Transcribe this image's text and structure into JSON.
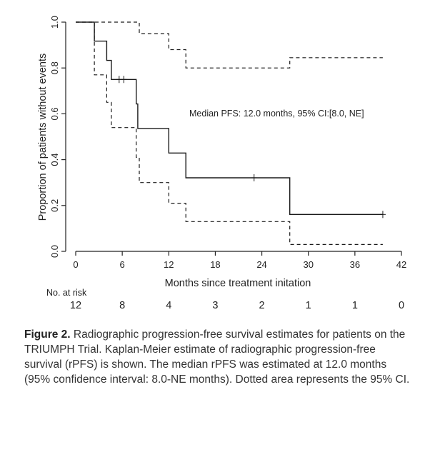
{
  "chart_data": {
    "type": "line",
    "xlabel": "Months since treatment initation",
    "ylabel": "Proportion of patients without events",
    "xlim": [
      0,
      42
    ],
    "ylim": [
      0,
      1
    ],
    "x_ticks": [
      0,
      6,
      12,
      18,
      24,
      30,
      36,
      42
    ],
    "y_ticks": [
      0.0,
      0.2,
      0.4,
      0.6,
      0.8,
      1.0
    ],
    "y_tick_labels": [
      "0.0",
      "0.2",
      "0.4",
      "0.6",
      "0.8",
      "1.0"
    ],
    "grid": false,
    "annotation": "Median PFS: 12.0 months, 95% CI:[8.0, NE]",
    "series": [
      {
        "style": "solid",
        "points": [
          [
            0,
            1.0
          ],
          [
            2.4,
            1.0
          ],
          [
            2.4,
            0.917
          ],
          [
            4.0,
            0.917
          ],
          [
            4.0,
            0.833
          ],
          [
            4.6,
            0.833
          ],
          [
            4.6,
            0.75
          ],
          [
            7.8,
            0.75
          ],
          [
            7.8,
            0.643
          ],
          [
            8.0,
            0.643
          ],
          [
            8.0,
            0.536
          ],
          [
            12.0,
            0.536
          ],
          [
            12.0,
            0.429
          ],
          [
            14.2,
            0.429
          ],
          [
            14.2,
            0.321
          ],
          [
            27.6,
            0.321
          ],
          [
            27.6,
            0.161
          ],
          [
            39.6,
            0.161
          ]
        ]
      },
      {
        "style": "dashed",
        "points": [
          [
            0,
            1.0
          ],
          [
            8.2,
            1.0
          ],
          [
            8.2,
            0.95
          ],
          [
            12.0,
            0.95
          ],
          [
            12.0,
            0.88
          ],
          [
            14.2,
            0.88
          ],
          [
            14.2,
            0.8
          ],
          [
            27.6,
            0.8
          ],
          [
            27.6,
            0.845
          ],
          [
            39.6,
            0.845
          ]
        ]
      },
      {
        "style": "dashed",
        "points": [
          [
            0,
            1.0
          ],
          [
            2.4,
            1.0
          ],
          [
            2.4,
            0.77
          ],
          [
            4.0,
            0.77
          ],
          [
            4.0,
            0.65
          ],
          [
            4.6,
            0.65
          ],
          [
            4.6,
            0.54
          ],
          [
            7.8,
            0.54
          ],
          [
            7.8,
            0.41
          ],
          [
            8.2,
            0.41
          ],
          [
            8.2,
            0.3
          ],
          [
            12.0,
            0.3
          ],
          [
            12.0,
            0.21
          ],
          [
            14.2,
            0.21
          ],
          [
            14.2,
            0.13
          ],
          [
            27.6,
            0.13
          ],
          [
            27.6,
            0.03
          ],
          [
            39.6,
            0.03
          ]
        ]
      }
    ],
    "censor_marks": [
      [
        5.6,
        0.75
      ],
      [
        6.2,
        0.75
      ],
      [
        23.0,
        0.321
      ],
      [
        39.6,
        0.161
      ]
    ],
    "risk_table": {
      "label": "No. at risk",
      "times": [
        0,
        6,
        12,
        18,
        24,
        30,
        36,
        42
      ],
      "counts": [
        "12",
        "8",
        "4",
        "3",
        "2",
        "1",
        "1",
        "0"
      ]
    }
  },
  "caption": {
    "label": "Figure 2.",
    "text": " Radiographic progression-free survival estimates for patients on the TRIUMPH Trial. Kaplan-Meier estimate of radiographic progression-free survival (rPFS) is shown. The median rPFS was estimated at 12.0 months (95% confidence interval: 8.0-NE months). Dotted area represents the 95% CI."
  }
}
